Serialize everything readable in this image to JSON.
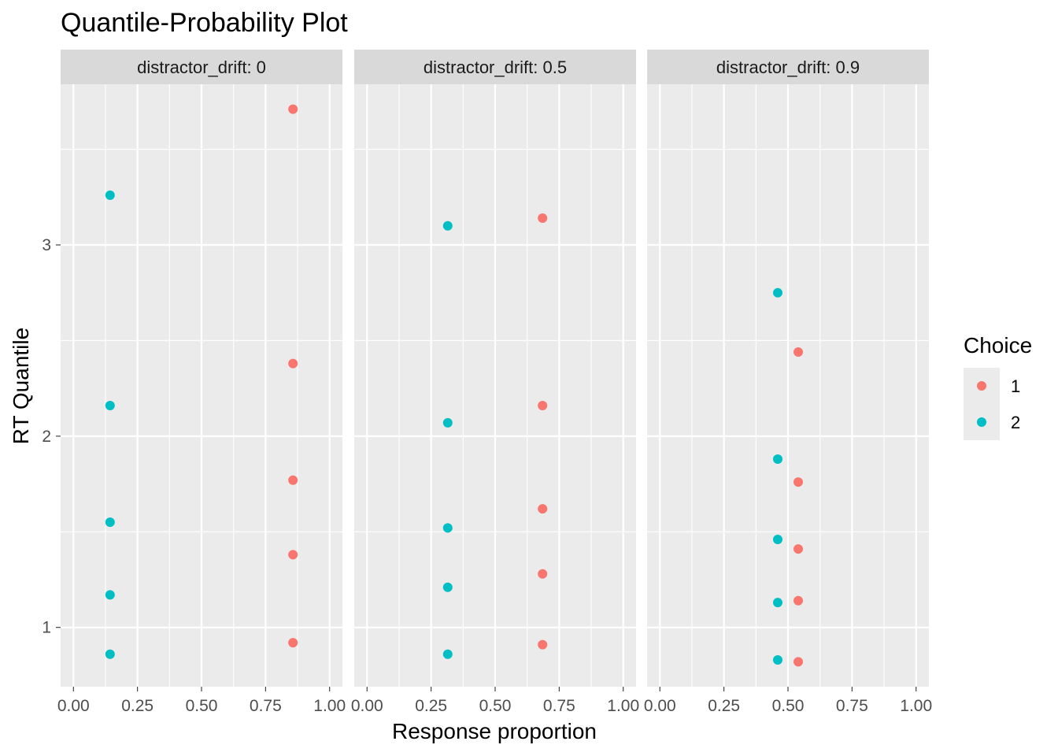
{
  "chart_data": {
    "type": "scatter",
    "title": "Quantile-Probability Plot",
    "xlabel": "Response proportion",
    "ylabel": "RT Quantile",
    "xlim": [
      -0.05,
      1.05
    ],
    "ylim": [
      0.69,
      3.84
    ],
    "x_ticks": [
      "0.00",
      "0.25",
      "0.50",
      "0.75",
      "1.00"
    ],
    "x_tick_values": [
      0,
      0.25,
      0.5,
      0.75,
      1
    ],
    "y_ticks": [
      "1",
      "2",
      "3"
    ],
    "y_tick_values": [
      1,
      2,
      3
    ],
    "grid": true,
    "legend": {
      "title": "Choice",
      "position": "right",
      "entries": [
        {
          "label": "1",
          "color": "#F8766D"
        },
        {
          "label": "2",
          "color": "#00BFC4"
        }
      ]
    },
    "facets": [
      {
        "label": "distractor_drift: 0",
        "series": [
          {
            "name": "1",
            "x": [
              0.857,
              0.857,
              0.857,
              0.857,
              0.857
            ],
            "y": [
              0.92,
              1.38,
              1.77,
              2.38,
              3.71
            ]
          },
          {
            "name": "2",
            "x": [
              0.143,
              0.143,
              0.143,
              0.143,
              0.143
            ],
            "y": [
              0.86,
              1.17,
              1.55,
              2.16,
              3.26
            ]
          }
        ]
      },
      {
        "label": "distractor_drift: 0.5",
        "series": [
          {
            "name": "1",
            "x": [
              0.685,
              0.685,
              0.685,
              0.685,
              0.685
            ],
            "y": [
              0.91,
              1.28,
              1.62,
              2.16,
              3.14
            ]
          },
          {
            "name": "2",
            "x": [
              0.315,
              0.315,
              0.315,
              0.315,
              0.315
            ],
            "y": [
              0.86,
              1.21,
              1.52,
              2.07,
              3.1
            ]
          }
        ]
      },
      {
        "label": "distractor_drift: 0.9",
        "series": [
          {
            "name": "1",
            "x": [
              0.54,
              0.54,
              0.54,
              0.54,
              0.54
            ],
            "y": [
              0.82,
              1.14,
              1.41,
              1.76,
              2.44
            ]
          },
          {
            "name": "2",
            "x": [
              0.46,
              0.46,
              0.46,
              0.46,
              0.46
            ],
            "y": [
              0.83,
              1.13,
              1.46,
              1.88,
              2.75
            ]
          }
        ]
      }
    ]
  }
}
